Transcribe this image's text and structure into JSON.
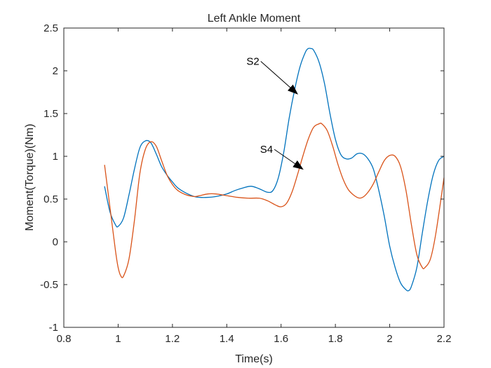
{
  "chart_data": {
    "type": "line",
    "title": "Left Ankle Moment",
    "xlabel": "Time(s)",
    "ylabel": "Moment(Torque)(Nm)",
    "xlim": [
      0.8,
      2.2
    ],
    "ylim": [
      -1,
      2.5
    ],
    "xticks": [
      0.8,
      1,
      1.2,
      1.4,
      1.6,
      1.8,
      2,
      2.2
    ],
    "xtick_labels": [
      "0.8",
      "1",
      "1.2",
      "1.4",
      "1.6",
      "1.8",
      "2",
      "2.2"
    ],
    "yticks": [
      -1,
      -0.5,
      0,
      0.5,
      1,
      1.5,
      2,
      2.5
    ],
    "ytick_labels": [
      "-1",
      "-0.5",
      "0",
      "0.5",
      "1",
      "1.5",
      "2",
      "2.5"
    ],
    "grid": false,
    "legend": "none",
    "series": [
      {
        "color": "#0072BD",
        "x": [
          0.95,
          0.97,
          0.99,
          1.0,
          1.02,
          1.04,
          1.06,
          1.08,
          1.1,
          1.12,
          1.14,
          1.16,
          1.18,
          1.2,
          1.22,
          1.25,
          1.28,
          1.3,
          1.33,
          1.36,
          1.4,
          1.43,
          1.46,
          1.49,
          1.52,
          1.55,
          1.57,
          1.59,
          1.61,
          1.63,
          1.65,
          1.67,
          1.69,
          1.7,
          1.71,
          1.72,
          1.74,
          1.76,
          1.78,
          1.8,
          1.82,
          1.84,
          1.86,
          1.88,
          1.9,
          1.92,
          1.94,
          1.96,
          1.98,
          2.0,
          2.02,
          2.04,
          2.06,
          2.07,
          2.08,
          2.1,
          2.12,
          2.14,
          2.16,
          2.18,
          2.2
        ],
        "y": [
          0.65,
          0.35,
          0.2,
          0.18,
          0.28,
          0.55,
          0.85,
          1.1,
          1.18,
          1.16,
          1.03,
          0.88,
          0.78,
          0.7,
          0.63,
          0.57,
          0.53,
          0.52,
          0.52,
          0.53,
          0.56,
          0.6,
          0.63,
          0.65,
          0.62,
          0.58,
          0.6,
          0.75,
          1.05,
          1.45,
          1.78,
          2.05,
          2.22,
          2.26,
          2.26,
          2.24,
          2.1,
          1.85,
          1.5,
          1.2,
          1.02,
          0.97,
          0.98,
          1.03,
          1.03,
          0.97,
          0.85,
          0.6,
          0.3,
          -0.05,
          -0.3,
          -0.48,
          -0.56,
          -0.57,
          -0.52,
          -0.3,
          0.1,
          0.48,
          0.78,
          0.95,
          1.0
        ]
      },
      {
        "color": "#D95319",
        "x": [
          0.95,
          0.97,
          0.99,
          1.0,
          1.01,
          1.02,
          1.04,
          1.06,
          1.08,
          1.1,
          1.12,
          1.14,
          1.16,
          1.18,
          1.2,
          1.22,
          1.25,
          1.28,
          1.3,
          1.33,
          1.36,
          1.4,
          1.44,
          1.48,
          1.52,
          1.55,
          1.58,
          1.6,
          1.62,
          1.64,
          1.66,
          1.68,
          1.7,
          1.72,
          1.74,
          1.75,
          1.77,
          1.79,
          1.81,
          1.83,
          1.85,
          1.88,
          1.9,
          1.92,
          1.94,
          1.96,
          1.98,
          2.0,
          2.02,
          2.04,
          2.06,
          2.08,
          2.1,
          2.12,
          2.13,
          2.15,
          2.17,
          2.2
        ],
        "y": [
          0.9,
          0.4,
          -0.1,
          -0.3,
          -0.4,
          -0.4,
          -0.2,
          0.25,
          0.8,
          1.08,
          1.17,
          1.12,
          0.95,
          0.78,
          0.67,
          0.6,
          0.55,
          0.53,
          0.54,
          0.56,
          0.56,
          0.54,
          0.52,
          0.51,
          0.51,
          0.48,
          0.43,
          0.41,
          0.45,
          0.58,
          0.78,
          1.0,
          1.2,
          1.34,
          1.38,
          1.38,
          1.3,
          1.12,
          0.9,
          0.72,
          0.6,
          0.52,
          0.52,
          0.58,
          0.68,
          0.82,
          0.95,
          1.01,
          1.0,
          0.88,
          0.6,
          0.2,
          -0.15,
          -0.3,
          -0.3,
          -0.2,
          0.1,
          0.75
        ]
      }
    ],
    "annotations": [
      {
        "text": "S2",
        "text_xy": [
          1.52,
          2.07
        ],
        "arrow_tip": [
          1.66,
          1.73
        ]
      },
      {
        "text": "S4",
        "text_xy": [
          1.57,
          1.04
        ],
        "arrow_tip": [
          1.68,
          0.85
        ]
      }
    ]
  }
}
